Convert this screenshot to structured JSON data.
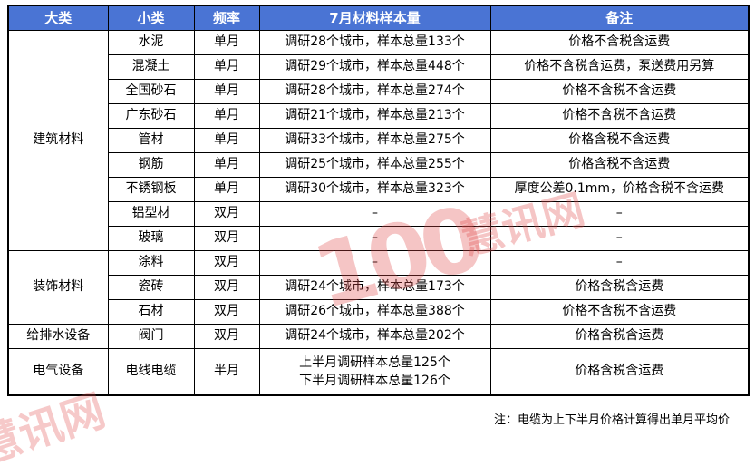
{
  "table": {
    "columns": {
      "category": "大类",
      "subcategory": "小类",
      "frequency": "频率",
      "sample": "7月材料样本量",
      "note": "备注"
    },
    "groups": [
      {
        "label": "建筑材料",
        "rows": 9
      },
      {
        "label": "装饰材料",
        "rows": 3
      },
      {
        "label": "给排水设备",
        "rows": 1
      },
      {
        "label": "电气设备",
        "rows": 1
      }
    ],
    "rows": [
      {
        "sub": "水泥",
        "freq": "单月",
        "sample": "调研28个城市，样本总量133个",
        "note": "价格不含税含运费"
      },
      {
        "sub": "混凝土",
        "freq": "单月",
        "sample": "调研29个城市，样本总量448个",
        "note": "价格不含税含运费，泵送费用另算"
      },
      {
        "sub": "全国砂石",
        "freq": "单月",
        "sample": "调研28个城市，样本总量274个",
        "note": "价格不含税不含运费"
      },
      {
        "sub": "广东砂石",
        "freq": "单月",
        "sample": "调研21个城市，样本总量213个",
        "note": "价格不含税不含运费"
      },
      {
        "sub": "管材",
        "freq": "单月",
        "sample": "调研33个城市，样本总量275个",
        "note": "价格含税不含运费"
      },
      {
        "sub": "钢筋",
        "freq": "单月",
        "sample": "调研25个城市，样本总量255个",
        "note": "价格含税不含运费"
      },
      {
        "sub": "不锈钢板",
        "freq": "单月",
        "sample": "调研30个城市，样本总量323个",
        "note": "厚度公差0.1mm，价格含税不含运费"
      },
      {
        "sub": "铝型材",
        "freq": "双月",
        "sample": "–",
        "note": "–"
      },
      {
        "sub": "玻璃",
        "freq": "双月",
        "sample": "–",
        "note": "–"
      },
      {
        "sub": "涂料",
        "freq": "双月",
        "sample": "–",
        "note": "–"
      },
      {
        "sub": "瓷砖",
        "freq": "双月",
        "sample": "调研24个城市，样本总量173个",
        "note": "价格含税含运费"
      },
      {
        "sub": "石材",
        "freq": "双月",
        "sample": "调研26个城市，样本总量388个",
        "note": "价格不含税不含运费"
      },
      {
        "sub": "阀门",
        "freq": "双月",
        "sample": "调研24个城市，样本总量202个",
        "note": "价格含税含运费"
      },
      {
        "sub": "电线电缆",
        "freq": "半月",
        "sample_line1": "上半月调研样本总量125个",
        "sample_line2": "下半月调研样本总量126个",
        "note": "价格含税含运费"
      }
    ]
  },
  "footnote": "注：电缆为上下半月价格计算得出单月平均价",
  "watermark": {
    "center_big": "100",
    "center_small": "慧讯网",
    "corner": "慧讯网",
    "color": "#e14b4b"
  },
  "colors": {
    "header_bg": "#4A74D4",
    "header_text": "#ffffff",
    "border": "#000000",
    "body_text": "#000000",
    "background": "#ffffff"
  }
}
